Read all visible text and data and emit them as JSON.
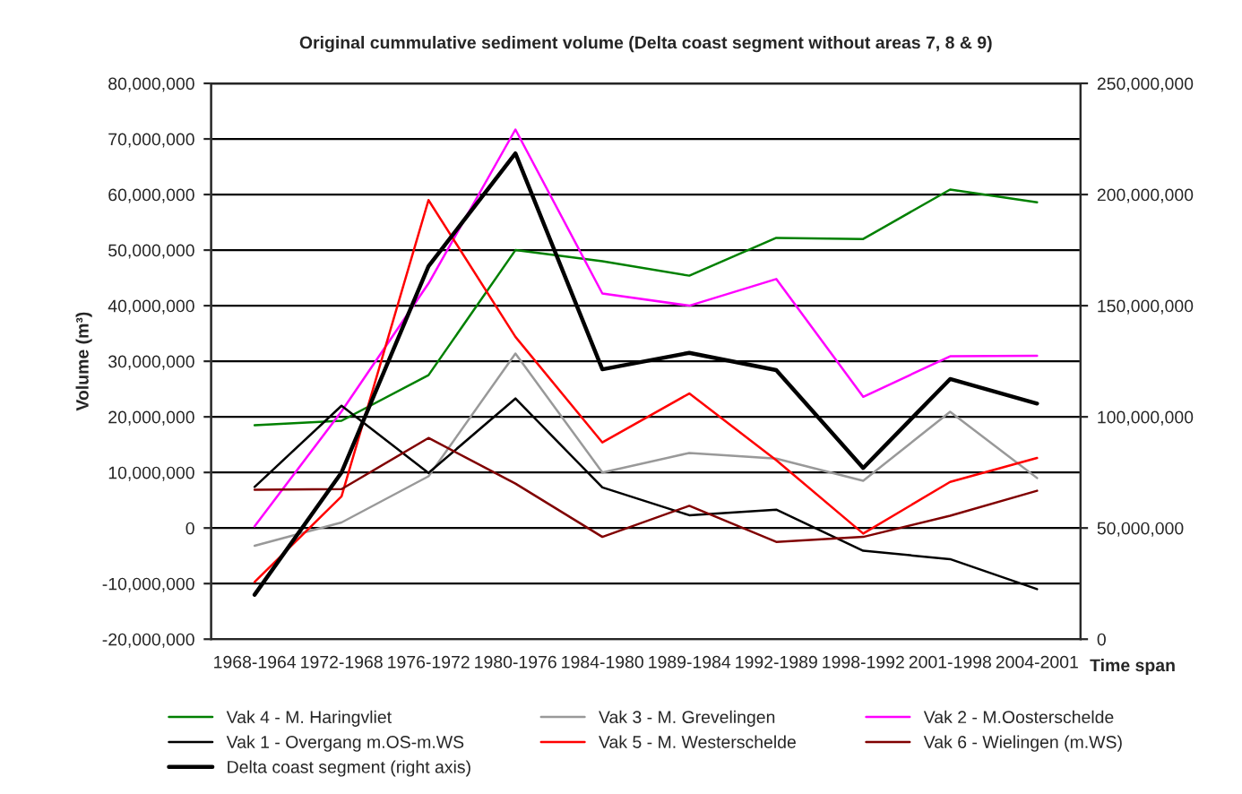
{
  "chart_data": {
    "type": "line",
    "title": "Original cummulative sediment volume (Delta coast segment without areas 7, 8 & 9)",
    "xlabel": "Time span",
    "ylabel": "Volume (m³)",
    "categories": [
      "1968-1964",
      "1972-1968",
      "1976-1972",
      "1980-1976",
      "1984-1980",
      "1989-1984",
      "1992-1989",
      "1998-1992",
      "2001-1998",
      "2004-2001"
    ],
    "series": [
      {
        "name": "Vak 4 - M. Haringvliet",
        "color": "#008000",
        "values": [
          18500000,
          19300000,
          27500000,
          50000000,
          48000000,
          45400000,
          52200000,
          52000000,
          60900000,
          58600000
        ]
      },
      {
        "name": "Vak 3 - M. Grevelingen",
        "color": "#999999",
        "values": [
          -3200000,
          1000000,
          9300000,
          31400000,
          10000000,
          13500000,
          12500000,
          8500000,
          20900000,
          9000000
        ]
      },
      {
        "name": "Vak 2 - M.Oosterschelde",
        "color": "#ff00ff",
        "values": [
          300000,
          21000000,
          44000000,
          71700000,
          42200000,
          40000000,
          44800000,
          23600000,
          30900000,
          31000000
        ]
      },
      {
        "name": "Vak 1 - Overgang m.OS-m.WS",
        "color": "#000000",
        "values": [
          7400000,
          22000000,
          9900000,
          23300000,
          7300000,
          2300000,
          3300000,
          -4100000,
          -5600000,
          -11000000
        ]
      },
      {
        "name": "Vak 5 - M. Westerschelde",
        "color": "#ff0000",
        "values": [
          -9700000,
          5700000,
          59000000,
          34400000,
          15400000,
          24200000,
          12200000,
          -1000000,
          8300000,
          12600000
        ]
      },
      {
        "name": "Vak 6 - Wielingen (m.WS)",
        "color": "#800000",
        "values": [
          6900000,
          7000000,
          16200000,
          8000000,
          -1600000,
          4000000,
          -2500000,
          -1600000,
          2200000,
          6700000
        ]
      },
      {
        "name": "Delta coast segment (right axis)",
        "color": "#000000",
        "axis": "y2",
        "values": [
          20000000,
          75000000,
          167700000,
          218500000,
          121400000,
          128800000,
          121000000,
          77000000,
          117000000,
          106000000
        ]
      }
    ],
    "ylim": [
      -20000000,
      80000000
    ],
    "yticks": [
      {
        "value": -20000000,
        "label": "-20,000,000"
      },
      {
        "value": -10000000,
        "label": "-10,000,000"
      },
      {
        "value": 0,
        "label": "0"
      },
      {
        "value": 10000000,
        "label": "10,000,000"
      },
      {
        "value": 20000000,
        "label": "20,000,000"
      },
      {
        "value": 30000000,
        "label": "30,000,000"
      },
      {
        "value": 40000000,
        "label": "40,000,000"
      },
      {
        "value": 50000000,
        "label": "50,000,000"
      },
      {
        "value": 60000000,
        "label": "60,000,000"
      },
      {
        "value": 70000000,
        "label": "70,000,000"
      },
      {
        "value": 80000000,
        "label": "80,000,000"
      }
    ],
    "y2lim": [
      0,
      250000000
    ],
    "y2ticks": [
      0,
      {
        "value": 50000000,
        "label": "50,000,000"
      },
      {
        "value": 100000000,
        "label": "100,000,000"
      },
      {
        "value": 150000000,
        "label": "150,000,000"
      },
      {
        "value": 200000000,
        "label": "200,000,000"
      },
      {
        "value": 250000000,
        "label": "250,000,000"
      }
    ],
    "grid": "y",
    "legend": "bottom",
    "marker": "none",
    "line_style": "solid"
  }
}
